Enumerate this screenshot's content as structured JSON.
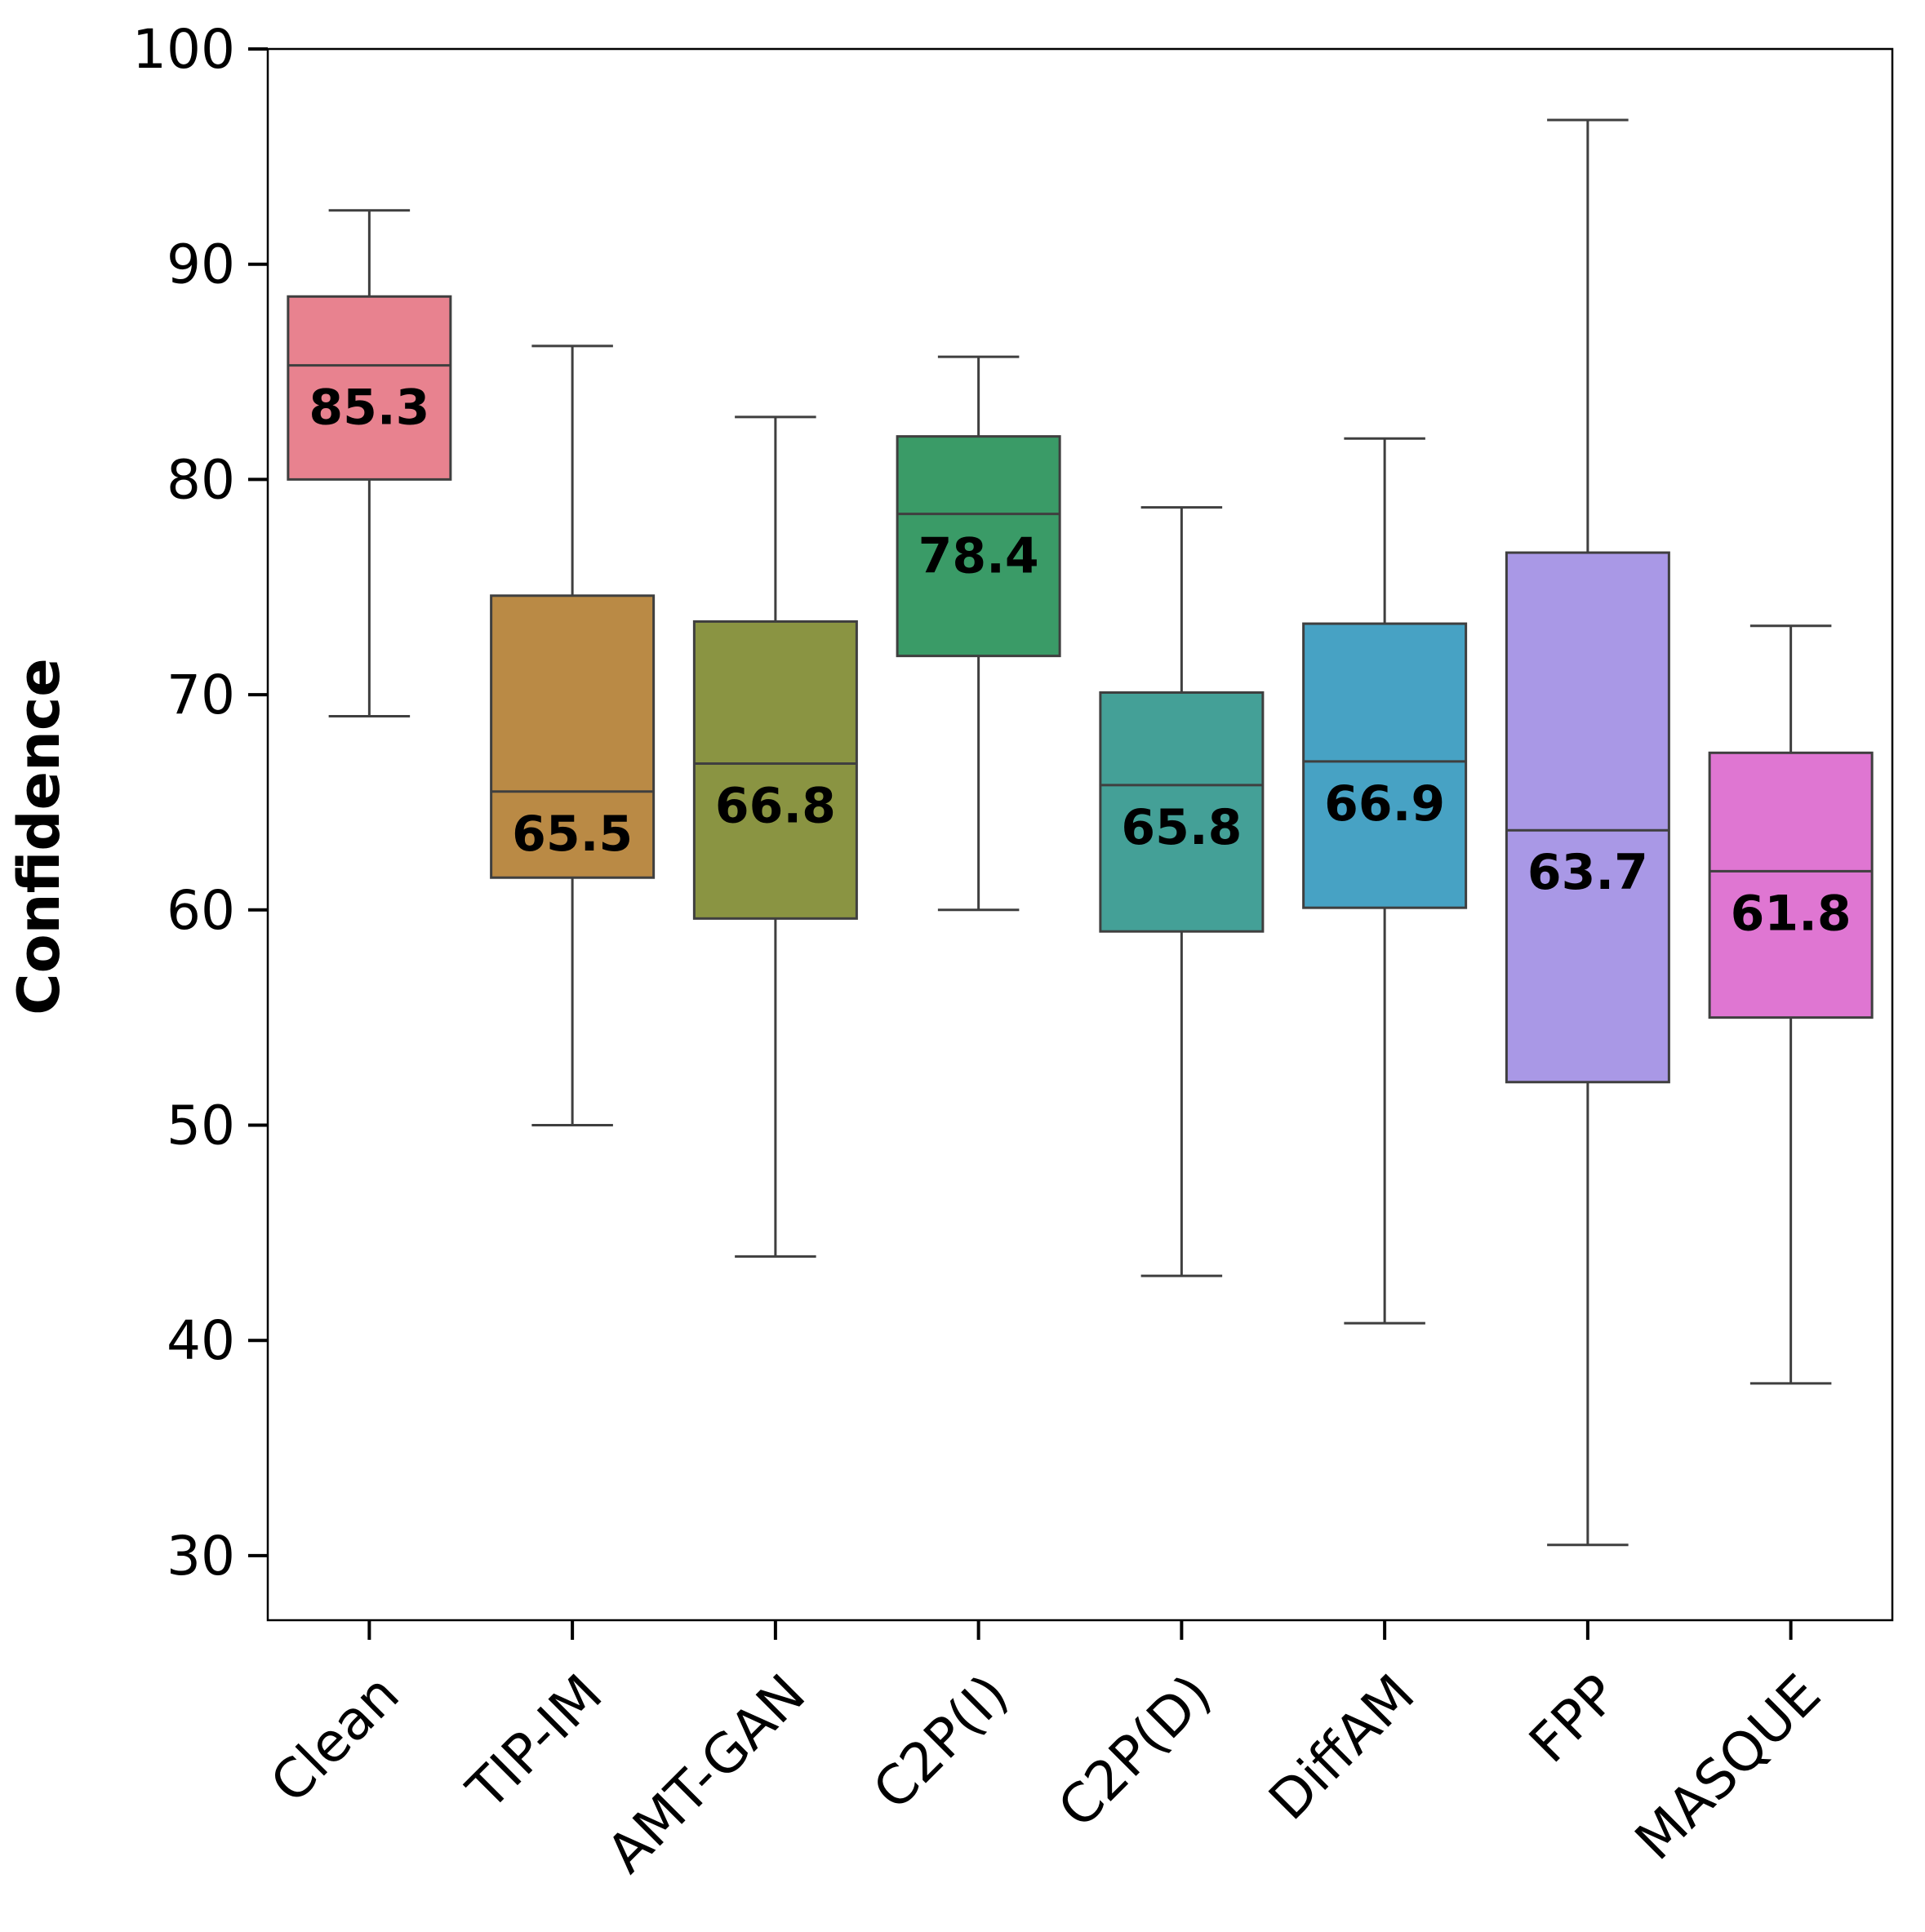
{
  "chart_data": {
    "type": "box",
    "title": "",
    "xlabel": "",
    "ylabel": "Confidence",
    "ylim": [
      27,
      100
    ],
    "yticks": [
      30,
      40,
      50,
      60,
      70,
      80,
      90,
      100
    ],
    "grid": false,
    "categories": [
      "Clean",
      "TIP-IM",
      "AMT-GAN",
      "C2P(I)",
      "C2P(D)",
      "DiffAM",
      "FPP",
      "MASQUE"
    ],
    "boxes": [
      {
        "name": "Clean",
        "whisker_low": 69.0,
        "q1": 80.0,
        "median": 85.3,
        "q3": 88.5,
        "whisker_high": 92.5,
        "median_label": "85.3",
        "color": "#E8828F"
      },
      {
        "name": "TIP-IM",
        "whisker_low": 50.0,
        "q1": 61.5,
        "median": 65.5,
        "q3": 74.6,
        "whisker_high": 86.2,
        "median_label": "65.5",
        "color": "#BA8A45"
      },
      {
        "name": "AMT-GAN",
        "whisker_low": 43.9,
        "q1": 59.6,
        "median": 66.8,
        "q3": 73.4,
        "whisker_high": 82.9,
        "median_label": "66.8",
        "color": "#8A9442"
      },
      {
        "name": "C2P(I)",
        "whisker_low": 60.0,
        "q1": 71.8,
        "median": 78.4,
        "q3": 82.0,
        "whisker_high": 85.7,
        "median_label": "78.4",
        "color": "#3A9B67"
      },
      {
        "name": "C2P(D)",
        "whisker_low": 43.0,
        "q1": 59.0,
        "median": 65.8,
        "q3": 70.1,
        "whisker_high": 78.7,
        "median_label": "65.8",
        "color": "#44A097"
      },
      {
        "name": "DiffAM",
        "whisker_low": 40.8,
        "q1": 60.1,
        "median": 66.9,
        "q3": 73.3,
        "whisker_high": 81.9,
        "median_label": "66.9",
        "color": "#47A2C4"
      },
      {
        "name": "FPP",
        "whisker_low": 30.5,
        "q1": 52.0,
        "median": 63.7,
        "q3": 76.6,
        "whisker_high": 96.7,
        "median_label": "63.7",
        "color": "#A998E6"
      },
      {
        "name": "MASQUE",
        "whisker_low": 38.0,
        "q1": 55.0,
        "median": 61.8,
        "q3": 67.3,
        "whisker_high": 73.2,
        "median_label": "61.8",
        "color": "#DF76D2"
      }
    ],
    "line_color": "#3f3f3f",
    "axis_color": "#000000"
  }
}
